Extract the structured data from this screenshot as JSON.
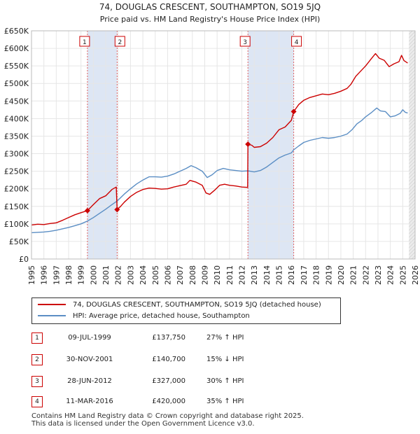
{
  "chart_data": {
    "type": "line",
    "title": "74, DOUGLAS CRESCENT, SOUTHAMPTON, SO19 5JQ",
    "subtitle": "Price paid vs. HM Land Registry's House Price Index (HPI)",
    "xlabel": "",
    "ylabel": "",
    "xlim": [
      1995,
      2026
    ],
    "ylim": [
      0,
      650000
    ],
    "x_ticks": [
      "1995",
      "1996",
      "1997",
      "1998",
      "1999",
      "2000",
      "2001",
      "2002",
      "2003",
      "2004",
      "2005",
      "2006",
      "2007",
      "2008",
      "2009",
      "2010",
      "2011",
      "2012",
      "2013",
      "2014",
      "2015",
      "2016",
      "2017",
      "2018",
      "2019",
      "2020",
      "2021",
      "2022",
      "2023",
      "2024",
      "2025",
      "2026"
    ],
    "y_ticks": [
      {
        "value": 0,
        "label": "£0"
      },
      {
        "value": 50000,
        "label": "£50K"
      },
      {
        "value": 100000,
        "label": "£100K"
      },
      {
        "value": 150000,
        "label": "£150K"
      },
      {
        "value": 200000,
        "label": "£200K"
      },
      {
        "value": 250000,
        "label": "£250K"
      },
      {
        "value": 300000,
        "label": "£300K"
      },
      {
        "value": 350000,
        "label": "£350K"
      },
      {
        "value": 400000,
        "label": "£400K"
      },
      {
        "value": 450000,
        "label": "£450K"
      },
      {
        "value": 500000,
        "label": "£500K"
      },
      {
        "value": 550000,
        "label": "£550K"
      },
      {
        "value": 600000,
        "label": "£600K"
      },
      {
        "value": 650000,
        "label": "£650K"
      }
    ],
    "series": [
      {
        "name": "74, DOUGLAS CRESCENT, SOUTHAMPTON, SO19 5JQ (detached house)",
        "color": "#cc0000",
        "points": [
          [
            1995.0,
            97000
          ],
          [
            1995.5,
            99000
          ],
          [
            1996.0,
            98000
          ],
          [
            1996.5,
            101000
          ],
          [
            1997.0,
            103000
          ],
          [
            1997.5,
            110000
          ],
          [
            1998.0,
            118000
          ],
          [
            1998.5,
            126000
          ],
          [
            1999.0,
            132000
          ],
          [
            1999.52,
            137750
          ],
          [
            2000.0,
            155000
          ],
          [
            2000.5,
            172000
          ],
          [
            2001.0,
            180000
          ],
          [
            2001.5,
            198000
          ],
          [
            2001.85,
            205000
          ],
          [
            2001.92,
            140700
          ],
          [
            2002.2,
            150000
          ],
          [
            2002.5,
            162000
          ],
          [
            2003.0,
            178000
          ],
          [
            2003.5,
            190000
          ],
          [
            2004.0,
            198000
          ],
          [
            2004.5,
            202000
          ],
          [
            2005.0,
            201000
          ],
          [
            2005.5,
            199000
          ],
          [
            2006.0,
            200000
          ],
          [
            2006.5,
            205000
          ],
          [
            2007.0,
            209000
          ],
          [
            2007.5,
            213000
          ],
          [
            2007.8,
            224000
          ],
          [
            2008.3,
            219000
          ],
          [
            2008.8,
            210000
          ],
          [
            2009.1,
            188000
          ],
          [
            2009.4,
            184000
          ],
          [
            2009.8,
            196000
          ],
          [
            2010.2,
            210000
          ],
          [
            2010.6,
            213000
          ],
          [
            2011.0,
            210000
          ],
          [
            2011.5,
            208000
          ],
          [
            2012.0,
            205000
          ],
          [
            2012.47,
            204000
          ],
          [
            2012.49,
            327000
          ],
          [
            2012.8,
            324000
          ],
          [
            2013.0,
            318000
          ],
          [
            2013.5,
            320000
          ],
          [
            2014.0,
            330000
          ],
          [
            2014.5,
            346000
          ],
          [
            2015.0,
            368000
          ],
          [
            2015.5,
            376000
          ],
          [
            2016.0,
            395000
          ],
          [
            2016.19,
            420000
          ],
          [
            2016.6,
            440000
          ],
          [
            2017.0,
            452000
          ],
          [
            2017.5,
            460000
          ],
          [
            2018.0,
            465000
          ],
          [
            2018.5,
            470000
          ],
          [
            2019.0,
            468000
          ],
          [
            2019.5,
            472000
          ],
          [
            2020.0,
            478000
          ],
          [
            2020.5,
            486000
          ],
          [
            2020.8,
            497000
          ],
          [
            2021.2,
            520000
          ],
          [
            2021.6,
            535000
          ],
          [
            2022.0,
            550000
          ],
          [
            2022.5,
            572000
          ],
          [
            2022.8,
            585000
          ],
          [
            2023.1,
            572000
          ],
          [
            2023.5,
            566000
          ],
          [
            2023.9,
            548000
          ],
          [
            2024.3,
            556000
          ],
          [
            2024.7,
            562000
          ],
          [
            2024.9,
            580000
          ],
          [
            2025.1,
            565000
          ],
          [
            2025.4,
            558000
          ]
        ]
      },
      {
        "name": "HPI: Average price, detached house, Southampton",
        "color": "#5b8ec4",
        "points": [
          [
            1995.0,
            75000
          ],
          [
            1995.5,
            76000
          ],
          [
            1996.0,
            77000
          ],
          [
            1996.5,
            79000
          ],
          [
            1997.0,
            82000
          ],
          [
            1997.5,
            86000
          ],
          [
            1998.0,
            90000
          ],
          [
            1998.5,
            95000
          ],
          [
            1999.0,
            100000
          ],
          [
            1999.52,
            108000
          ],
          [
            2000.0,
            118000
          ],
          [
            2000.5,
            130000
          ],
          [
            2001.0,
            142000
          ],
          [
            2001.5,
            155000
          ],
          [
            2001.92,
            165000
          ],
          [
            2002.5,
            185000
          ],
          [
            2003.0,
            200000
          ],
          [
            2003.5,
            214000
          ],
          [
            2004.0,
            225000
          ],
          [
            2004.5,
            234000
          ],
          [
            2005.0,
            234000
          ],
          [
            2005.5,
            233000
          ],
          [
            2006.0,
            236000
          ],
          [
            2006.5,
            242000
          ],
          [
            2007.0,
            250000
          ],
          [
            2007.5,
            258000
          ],
          [
            2007.9,
            266000
          ],
          [
            2008.3,
            260000
          ],
          [
            2008.8,
            250000
          ],
          [
            2009.2,
            232000
          ],
          [
            2009.6,
            240000
          ],
          [
            2010.0,
            252000
          ],
          [
            2010.5,
            258000
          ],
          [
            2011.0,
            254000
          ],
          [
            2011.5,
            252000
          ],
          [
            2012.0,
            250000
          ],
          [
            2012.49,
            251000
          ],
          [
            2013.0,
            248000
          ],
          [
            2013.5,
            252000
          ],
          [
            2014.0,
            262000
          ],
          [
            2014.5,
            275000
          ],
          [
            2015.0,
            288000
          ],
          [
            2015.5,
            296000
          ],
          [
            2016.0,
            302000
          ],
          [
            2016.19,
            311000
          ],
          [
            2016.6,
            322000
          ],
          [
            2017.0,
            332000
          ],
          [
            2017.5,
            338000
          ],
          [
            2018.0,
            342000
          ],
          [
            2018.5,
            346000
          ],
          [
            2019.0,
            344000
          ],
          [
            2019.5,
            346000
          ],
          [
            2020.0,
            350000
          ],
          [
            2020.5,
            356000
          ],
          [
            2020.9,
            368000
          ],
          [
            2021.3,
            385000
          ],
          [
            2021.7,
            395000
          ],
          [
            2022.0,
            405000
          ],
          [
            2022.5,
            418000
          ],
          [
            2022.9,
            430000
          ],
          [
            2023.2,
            422000
          ],
          [
            2023.6,
            420000
          ],
          [
            2024.0,
            405000
          ],
          [
            2024.4,
            408000
          ],
          [
            2024.8,
            415000
          ],
          [
            2025.0,
            425000
          ],
          [
            2025.2,
            418000
          ],
          [
            2025.4,
            416000
          ]
        ]
      }
    ],
    "transactions": [
      {
        "id": "1",
        "date": "09-JUL-1999",
        "x": 1999.52,
        "price": 137750,
        "price_label": "£137,750",
        "hpi_change": "27% ↑ HPI"
      },
      {
        "id": "2",
        "date": "30-NOV-2001",
        "x": 2001.92,
        "price": 140700,
        "price_label": "£140,700",
        "hpi_change": "15% ↓ HPI"
      },
      {
        "id": "3",
        "date": "28-JUN-2012",
        "x": 2012.49,
        "price": 327000,
        "price_label": "£327,000",
        "hpi_change": "30% ↑ HPI"
      },
      {
        "id": "4",
        "date": "11-MAR-2016",
        "x": 2016.19,
        "price": 420000,
        "price_label": "£420,000",
        "hpi_change": "35% ↑ HPI"
      }
    ],
    "forecast_start": 2025.5,
    "colors": {
      "highlight_band": "#dde6f4",
      "grid": "#e6e6e6",
      "marker": "#cc0000"
    }
  },
  "legend": {
    "property_label": "74, DOUGLAS CRESCENT, SOUTHAMPTON, SO19 5JQ (detached house)",
    "hpi_label": "HPI: Average price, detached house, Southampton"
  },
  "footer": {
    "line1": "Contains HM Land Registry data © Crown copyright and database right 2025.",
    "line2": "This data is licensed under the Open Government Licence v3.0."
  }
}
